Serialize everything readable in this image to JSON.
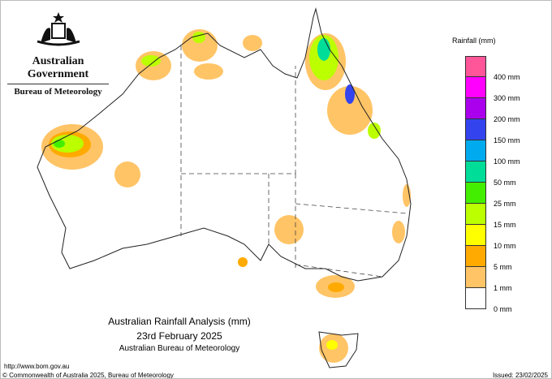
{
  "header": {
    "government": "Australian Government",
    "bureau": "Bureau of Meteorology"
  },
  "title": {
    "line1": "Australian Rainfall Analysis (mm)",
    "line2": "23rd February 2025",
    "line3": "Australian Bureau of Meteorology"
  },
  "footer": {
    "url": "http://www.bom.gov.au",
    "copyright": "© Commonwealth of Australia 2025, Bureau of Meteorology",
    "issued": "Issued: 23/02/2025"
  },
  "legend": {
    "title": "Rainfall (mm)",
    "colors": [
      "#ff5599",
      "#ff00ff",
      "#aa00ee",
      "#3344ee",
      "#00aaee",
      "#00dd99",
      "#44ee00",
      "#bbff00",
      "#ffff00",
      "#ffaa00",
      "#ffc466",
      "#ffffff"
    ],
    "labels": [
      "400 mm",
      "300 mm",
      "200 mm",
      "150 mm",
      "100 mm",
      "50 mm",
      "25 mm",
      "15 mm",
      "10 mm",
      "5 mm",
      "1 mm",
      "0 mm"
    ]
  }
}
